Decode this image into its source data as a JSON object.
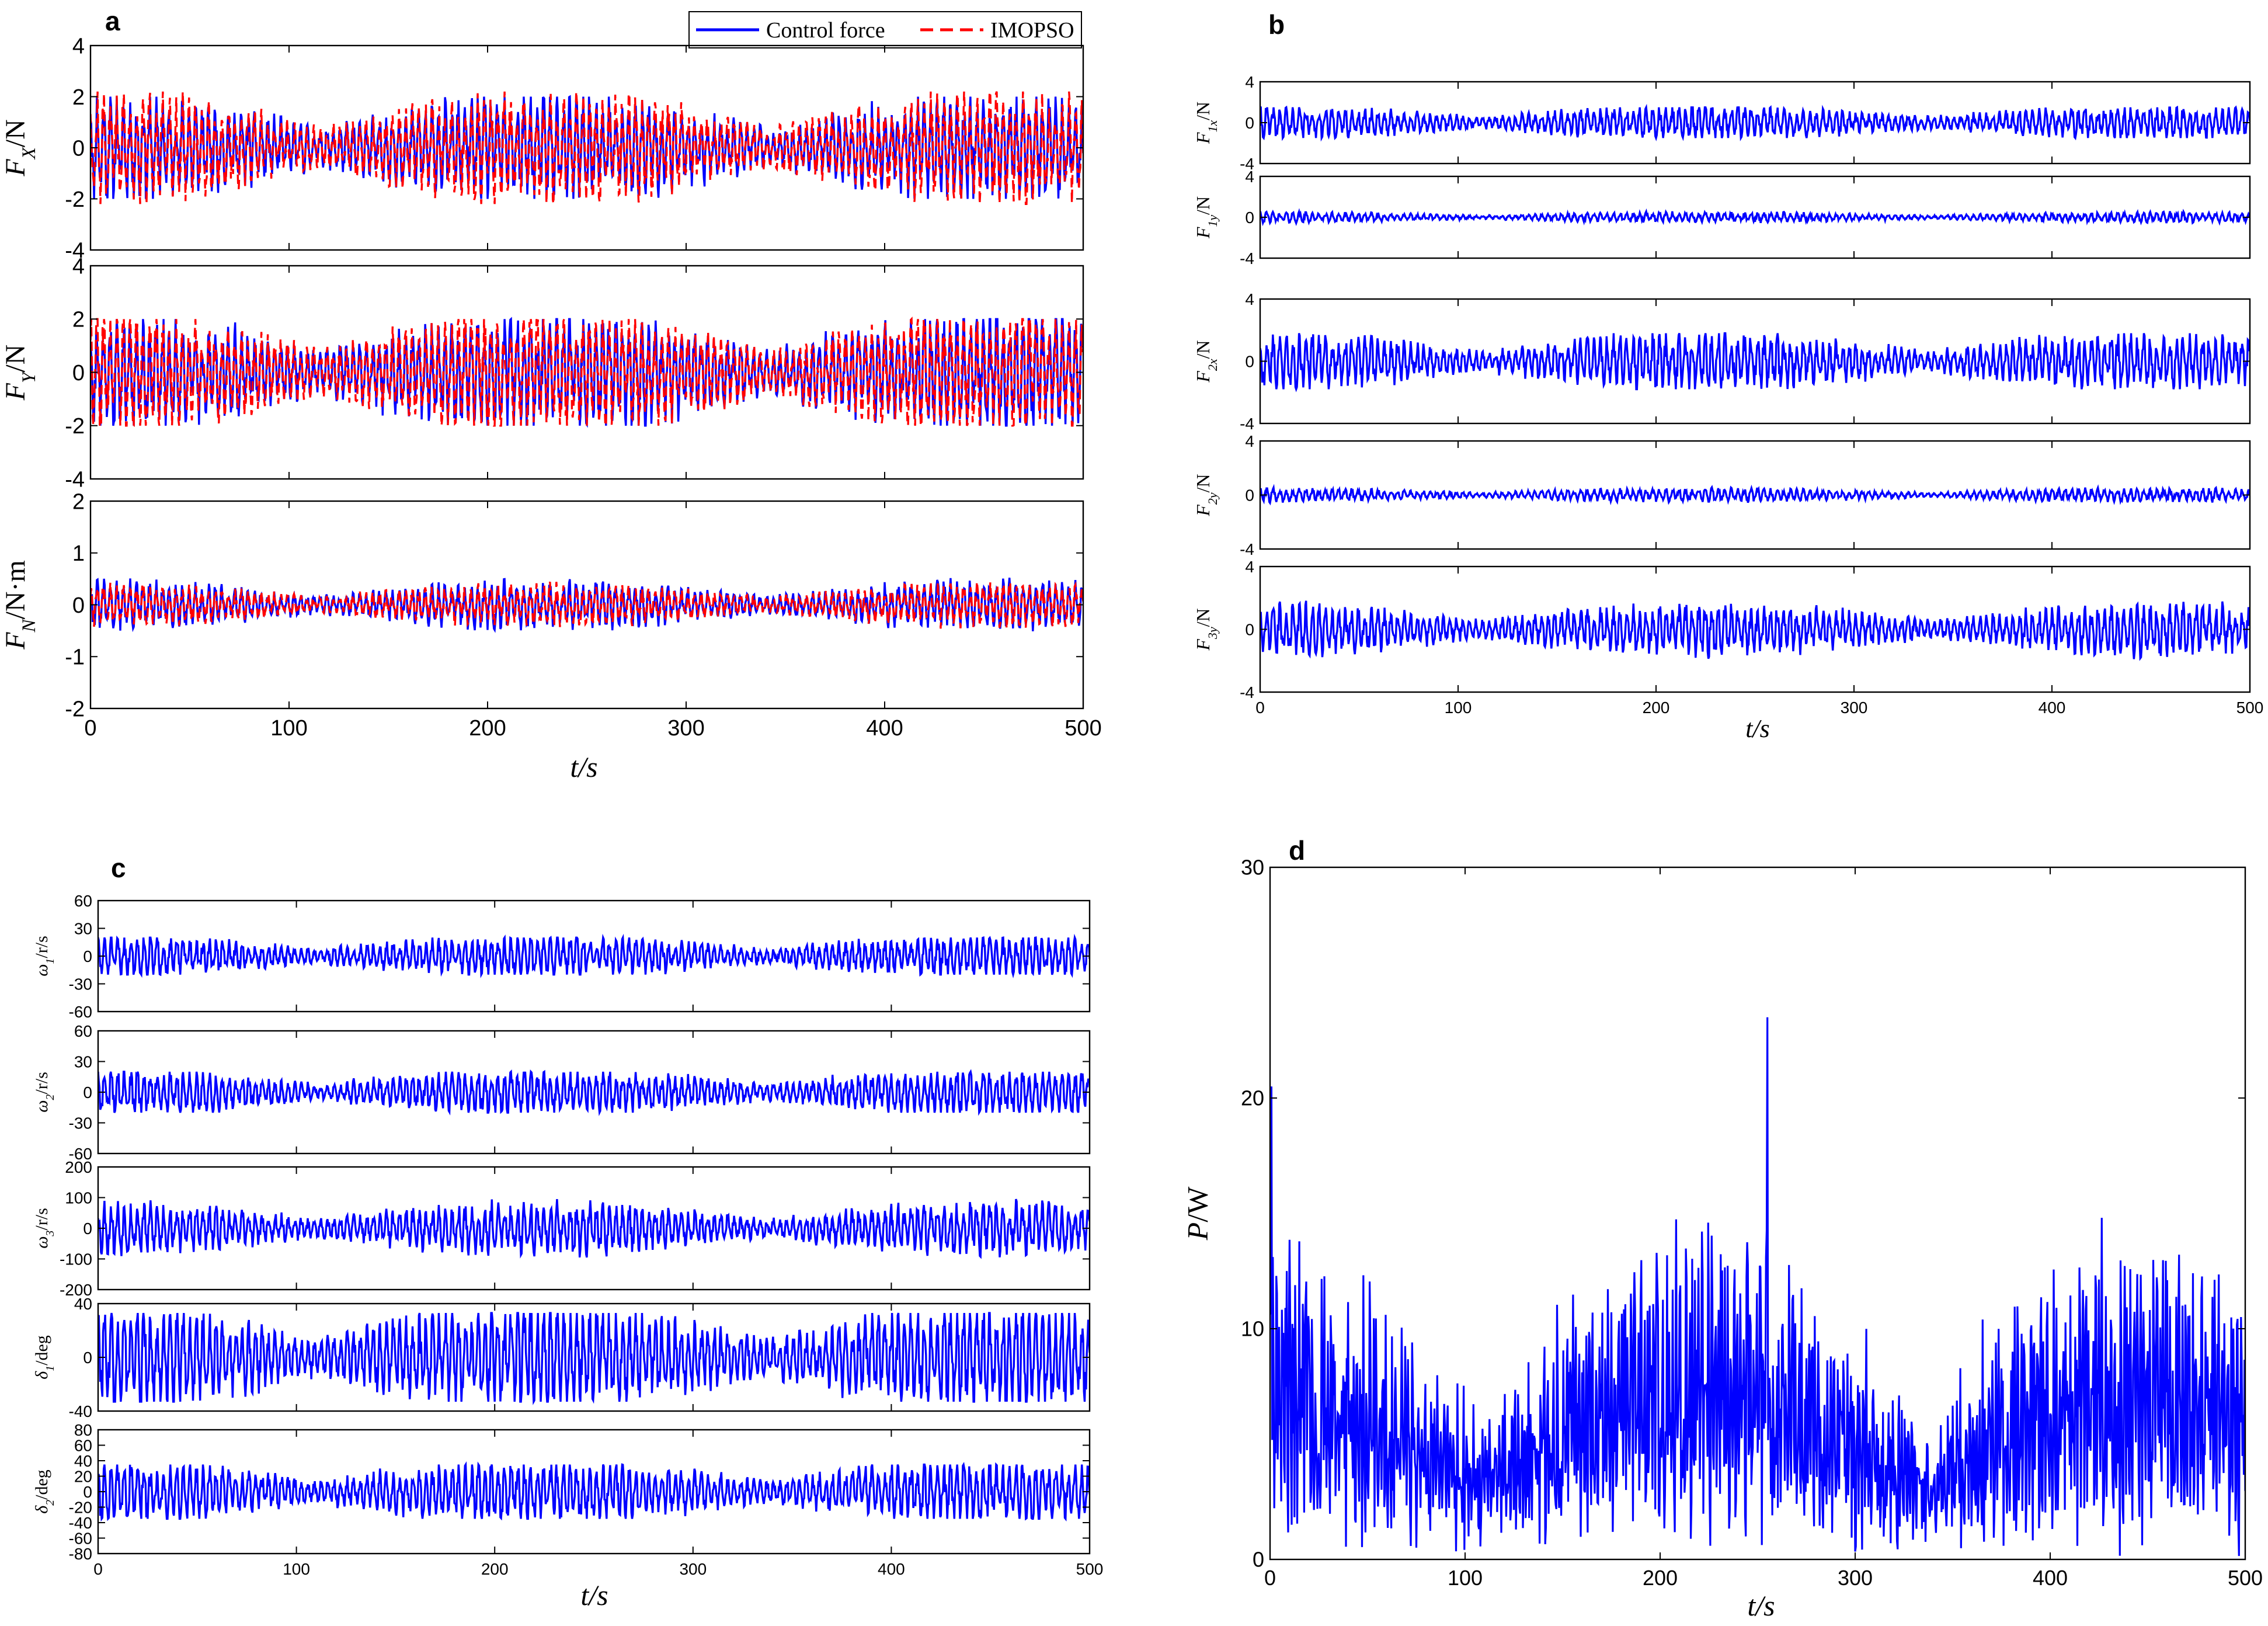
{
  "figure": {
    "background": "#ffffff"
  },
  "colors": {
    "control": "#0000ff",
    "imopso": "#ff0000",
    "axis": "#000000"
  },
  "legend": {
    "items": [
      {
        "label": "Control force",
        "color": "#0000ff",
        "style": "solid"
      },
      {
        "label": "IMOPSO",
        "color": "#ff0000",
        "style": "dashed"
      }
    ]
  },
  "panels": [
    {
      "id": "a",
      "letter": "a",
      "xlabel": "t/s"
    },
    {
      "id": "b",
      "letter": "b",
      "xlabel": "t/s"
    },
    {
      "id": "c",
      "letter": "c",
      "xlabel": "t/s"
    },
    {
      "id": "d",
      "letter": "d",
      "xlabel": "t/s"
    }
  ],
  "chart_data": [
    {
      "panel": "a",
      "type": "line",
      "title": "",
      "ylabel": "F_X/N",
      "xlim": [
        0,
        500
      ],
      "ylim": [
        -4,
        4
      ],
      "xticks": [
        "0",
        "100",
        "200",
        "300",
        "400",
        "500"
      ],
      "yticks": [
        "-4",
        "-2",
        "0",
        "2",
        "4"
      ],
      "show_xticks": false,
      "series": [
        {
          "name": "Control force",
          "color": "#0000ff",
          "style": "solid",
          "amp": 2,
          "clip": 2,
          "seed": 11
        },
        {
          "name": "IMOPSO",
          "color": "#ff0000",
          "style": "dashed",
          "amp": 2.1,
          "clip": 2.2,
          "seed": 12
        }
      ]
    },
    {
      "panel": "a",
      "type": "line",
      "title": "",
      "ylabel": "F_Y/N",
      "xlim": [
        0,
        500
      ],
      "ylim": [
        -4,
        4
      ],
      "xticks": [
        "0",
        "100",
        "200",
        "300",
        "400",
        "500"
      ],
      "yticks": [
        "-4",
        "-2",
        "0",
        "2",
        "4"
      ],
      "show_xticks": false,
      "series": [
        {
          "name": "Control force",
          "color": "#0000ff",
          "style": "solid",
          "amp": 2.2,
          "clip": 2,
          "seed": 21
        },
        {
          "name": "IMOPSO",
          "color": "#ff0000",
          "style": "dashed",
          "amp": 2.2,
          "clip": 2,
          "seed": 22
        }
      ]
    },
    {
      "panel": "a",
      "type": "line",
      "title": "",
      "ylabel": "F_N/N·m",
      "xlim": [
        0,
        500
      ],
      "ylim": [
        -2,
        2
      ],
      "xticks": [
        "0",
        "100",
        "200",
        "300",
        "400",
        "500"
      ],
      "yticks": [
        "-2",
        "-1",
        "0",
        "1",
        "2"
      ],
      "show_xticks": true,
      "series": [
        {
          "name": "Control force",
          "color": "#0000ff",
          "style": "solid",
          "amp": 0.45,
          "clip": 1.5,
          "seed": 31
        },
        {
          "name": "IMOPSO",
          "color": "#ff0000",
          "style": "dashed",
          "amp": 0.4,
          "clip": 1.5,
          "seed": 32
        }
      ]
    },
    {
      "panel": "b",
      "type": "line",
      "title": "",
      "ylabel": "F_1x/N",
      "xlim": [
        0,
        500
      ],
      "ylim": [
        -4,
        4
      ],
      "xticks": [
        "0",
        "100",
        "200",
        "300",
        "400",
        "500"
      ],
      "yticks": [
        "-4",
        "0",
        "4"
      ],
      "show_xticks": false,
      "series": [
        {
          "name": "F1x",
          "color": "#0000ff",
          "style": "solid",
          "amp": 1.6,
          "clip": 1.5,
          "seed": 41
        }
      ]
    },
    {
      "panel": "b",
      "type": "line",
      "title": "",
      "ylabel": "F_1y/N",
      "xlim": [
        0,
        500
      ],
      "ylim": [
        -4,
        4
      ],
      "xticks": [
        "0",
        "100",
        "200",
        "300",
        "400",
        "500"
      ],
      "yticks": [
        "-4",
        "0",
        "4"
      ],
      "show_xticks": false,
      "series": [
        {
          "name": "F1y",
          "color": "#0000ff",
          "style": "solid",
          "amp": 0.5,
          "clip": 1,
          "seed": 42
        }
      ]
    },
    {
      "panel": "b",
      "type": "line",
      "title": "",
      "ylabel": "F_2x/N",
      "xlim": [
        0,
        500
      ],
      "ylim": [
        -4,
        4
      ],
      "xticks": [
        "0",
        "100",
        "200",
        "300",
        "400",
        "500"
      ],
      "yticks": [
        "-4",
        "0",
        "4"
      ],
      "show_xticks": false,
      "series": [
        {
          "name": "F2x",
          "color": "#0000ff",
          "style": "solid",
          "amp": 1.8,
          "clip": 1.8,
          "seed": 43
        }
      ]
    },
    {
      "panel": "b",
      "type": "line",
      "title": "",
      "ylabel": "F_2y/N",
      "xlim": [
        0,
        500
      ],
      "ylim": [
        -4,
        4
      ],
      "xticks": [
        "0",
        "100",
        "200",
        "300",
        "400",
        "500"
      ],
      "yticks": [
        "-4",
        "0",
        "4"
      ],
      "show_xticks": false,
      "series": [
        {
          "name": "F2y",
          "color": "#0000ff",
          "style": "solid",
          "amp": 0.5,
          "clip": 1,
          "seed": 44
        }
      ]
    },
    {
      "panel": "b",
      "type": "line",
      "title": "",
      "ylabel": "F_3y/N",
      "xlim": [
        0,
        500
      ],
      "ylim": [
        -4,
        4
      ],
      "xticks": [
        "0",
        "100",
        "200",
        "300",
        "400",
        "500"
      ],
      "yticks": [
        "-4",
        "0",
        "4"
      ],
      "show_xticks": true,
      "series": [
        {
          "name": "F3y",
          "color": "#0000ff",
          "style": "solid",
          "amp": 1.6,
          "clip": 2.2,
          "seed": 45
        }
      ]
    },
    {
      "panel": "c",
      "type": "line",
      "title": "",
      "ylabel": "ω_1/r/s",
      "xlim": [
        0,
        500
      ],
      "ylim": [
        -60,
        60
      ],
      "xticks": [
        "0",
        "100",
        "200",
        "300",
        "400",
        "500"
      ],
      "yticks": [
        "-60",
        "-30",
        "0",
        "30",
        "60"
      ],
      "show_xticks": false,
      "series": [
        {
          "name": "omega1",
          "color": "#0000ff",
          "style": "solid",
          "amp": 22,
          "clip": 20,
          "seed": 51
        }
      ]
    },
    {
      "panel": "c",
      "type": "line",
      "title": "",
      "ylabel": "ω_2/r/s",
      "xlim": [
        0,
        500
      ],
      "ylim": [
        -60,
        60
      ],
      "xticks": [
        "0",
        "100",
        "200",
        "300",
        "400",
        "500"
      ],
      "yticks": [
        "-60",
        "-30",
        "0",
        "30",
        "60"
      ],
      "show_xticks": false,
      "series": [
        {
          "name": "omega2",
          "color": "#0000ff",
          "style": "solid",
          "amp": 22,
          "clip": 20,
          "seed": 52
        }
      ]
    },
    {
      "panel": "c",
      "type": "line",
      "title": "",
      "ylabel": "ω_3/r/s",
      "xlim": [
        0,
        500
      ],
      "ylim": [
        -200,
        200
      ],
      "xticks": [
        "0",
        "100",
        "200",
        "300",
        "400",
        "500"
      ],
      "yticks": [
        "-200",
        "-100",
        "0",
        "100",
        "200"
      ],
      "show_xticks": false,
      "series": [
        {
          "name": "omega3",
          "color": "#0000ff",
          "style": "solid",
          "amp": 85,
          "clip": 95,
          "seed": 53
        }
      ]
    },
    {
      "panel": "c",
      "type": "line",
      "title": "",
      "ylabel": "δ_1/deg",
      "xlim": [
        0,
        500
      ],
      "ylim": [
        -40,
        40
      ],
      "xticks": [
        "0",
        "100",
        "200",
        "300",
        "400",
        "500"
      ],
      "yticks": [
        "-40",
        "0",
        "40"
      ],
      "show_xticks": false,
      "series": [
        {
          "name": "delta1",
          "color": "#0000ff",
          "style": "solid",
          "amp": 38,
          "clip": 33,
          "seed": 54
        }
      ]
    },
    {
      "panel": "c",
      "type": "line",
      "title": "",
      "ylabel": "δ_2/deg",
      "xlim": [
        0,
        500
      ],
      "ylim": [
        -80,
        80
      ],
      "xticks": [
        "0",
        "100",
        "200",
        "300",
        "400",
        "500"
      ],
      "yticks": [
        "-80",
        "-60",
        "-40",
        "-20",
        "0",
        "20",
        "40",
        "60",
        "80"
      ],
      "show_xticks": true,
      "series": [
        {
          "name": "delta2",
          "color": "#0000ff",
          "style": "solid",
          "amp": 40,
          "clip": 35,
          "seed": 55
        }
      ]
    },
    {
      "panel": "d",
      "type": "line",
      "title": "",
      "ylabel": "P/W",
      "xlim": [
        0,
        500
      ],
      "ylim": [
        0,
        30
      ],
      "xticks": [
        "0",
        "100",
        "200",
        "300",
        "400",
        "500"
      ],
      "yticks": [
        "0",
        "10",
        "20",
        "30"
      ],
      "show_xticks": true,
      "series": [
        {
          "name": "P",
          "color": "#0000ff",
          "style": "solid",
          "amp": 9,
          "clip": 23.5,
          "seed": 61,
          "positive": true
        }
      ]
    }
  ]
}
